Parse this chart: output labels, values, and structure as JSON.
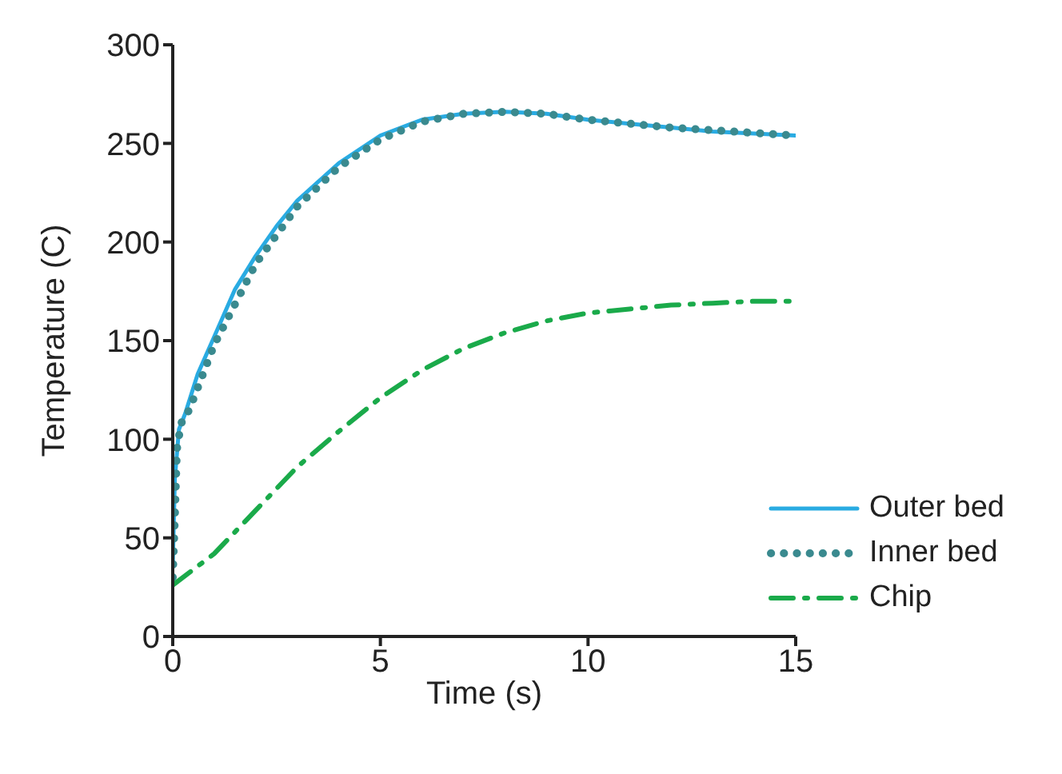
{
  "chart_data": {
    "type": "line",
    "xlabel": "Time (s)",
    "ylabel": "Temperature (C)",
    "xlim": [
      0,
      15
    ],
    "xticks": [
      0,
      5,
      10,
      15
    ],
    "ylim": [
      0,
      300
    ],
    "yticks": [
      0,
      50,
      100,
      150,
      200,
      250,
      300
    ],
    "grid": false,
    "legend": "bottom right",
    "marker": "none",
    "series": [
      {
        "name": "Outer bed",
        "color": "#29abe2",
        "line_style": "solid",
        "x": [
          0,
          0.05,
          0.15,
          0.3,
          0.6,
          1,
          1.5,
          2,
          2.5,
          3,
          4,
          5,
          6,
          7,
          8,
          9,
          10,
          11,
          12,
          13,
          14,
          15
        ],
        "values": [
          35,
          80,
          105,
          113,
          133,
          152,
          176,
          193,
          208,
          221,
          240,
          254,
          262,
          265,
          266,
          265,
          262,
          260,
          258,
          256,
          255,
          254
        ]
      },
      {
        "name": "Inner bed",
        "color": "#3a8a8f",
        "line_style": "dotted",
        "x": [
          0,
          0.05,
          0.1,
          0.2,
          0.4,
          1,
          2,
          3,
          4,
          5,
          6,
          7,
          8,
          9,
          10,
          12,
          15
        ],
        "values": [
          30,
          60,
          95,
          108,
          115,
          148,
          189,
          218,
          238,
          252,
          261,
          265,
          266,
          265,
          262,
          258,
          254
        ]
      },
      {
        "name": "Chip",
        "color": "#1aaa4a",
        "line_style": "dashed",
        "x": [
          0,
          1,
          2,
          2.5,
          3,
          4,
          5,
          6,
          7,
          8,
          9,
          10,
          11,
          12,
          13,
          14,
          15
        ],
        "values": [
          26,
          42,
          64,
          75,
          86,
          104,
          121,
          135,
          146,
          154,
          160,
          164,
          166,
          168,
          169,
          170,
          170
        ]
      }
    ]
  }
}
